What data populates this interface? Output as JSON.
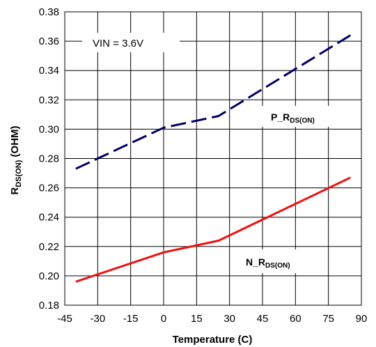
{
  "chart_data": {
    "type": "line",
    "xlabel": "Temperature (C)",
    "ylabel": {
      "main": "R",
      "sub": "DS(ON)",
      "unit": " (OHM)"
    },
    "xlim": [
      -45,
      90
    ],
    "ylim": [
      0.18,
      0.38
    ],
    "x_ticks": [
      "-45",
      "-30",
      "-15",
      "0",
      "15",
      "30",
      "45",
      "60",
      "75",
      "90"
    ],
    "y_ticks": [
      "0.18",
      "0.20",
      "0.22",
      "0.24",
      "0.26",
      "0.28",
      "0.30",
      "0.32",
      "0.34",
      "0.36",
      "0.38"
    ],
    "grid": true,
    "annotation": "VIN = 3.6V",
    "series": [
      {
        "name": {
          "main": "P_R",
          "sub": "DS(ON)"
        },
        "color": "#000066",
        "dash": "dashed",
        "x": [
          -40,
          0,
          25,
          85
        ],
        "y": [
          0.273,
          0.301,
          0.309,
          0.364
        ]
      },
      {
        "name": {
          "main": "N_R",
          "sub": "DS(ON)"
        },
        "color": "#ee1111",
        "dash": "solid",
        "x": [
          -40,
          0,
          25,
          85
        ],
        "y": [
          0.196,
          0.216,
          0.224,
          0.267
        ]
      }
    ]
  }
}
